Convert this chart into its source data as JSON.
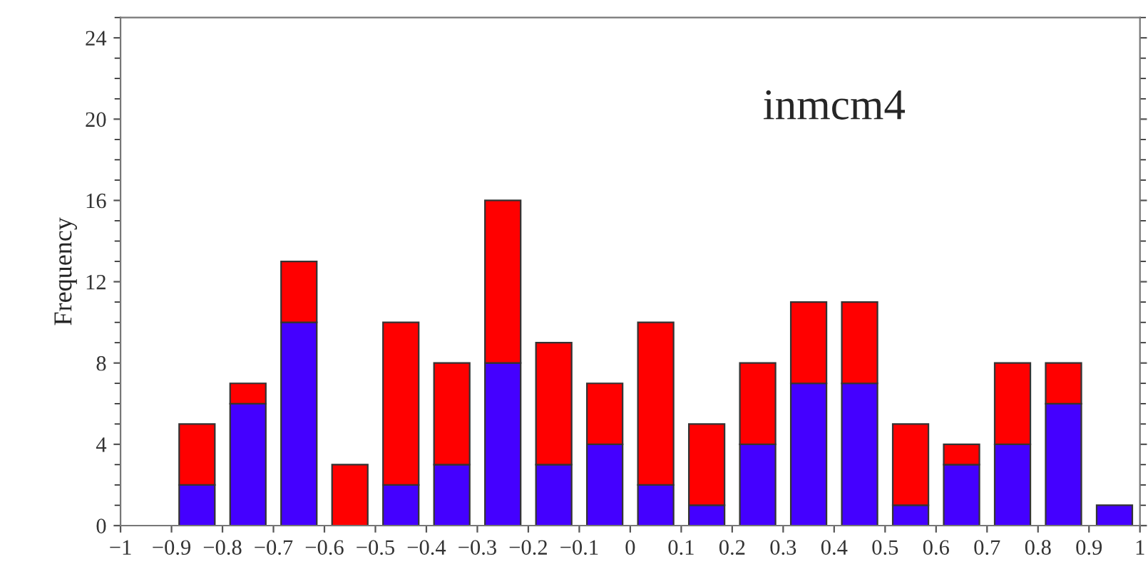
{
  "chart_data": {
    "type": "bar",
    "stacked": true,
    "ylabel": "Frequency",
    "annotations": [
      "inmcm4"
    ],
    "x": [
      -0.85,
      -0.75,
      -0.65,
      -0.55,
      -0.45,
      -0.35,
      -0.25,
      -0.15,
      -0.05,
      0.05,
      0.15,
      0.25,
      0.35,
      0.45,
      0.55,
      0.65,
      0.75,
      0.85,
      0.95
    ],
    "series": [
      {
        "color": "#4400ff",
        "values": [
          2,
          6,
          10,
          0,
          2,
          3,
          8,
          3,
          4,
          2,
          1,
          4,
          7,
          7,
          1,
          3,
          4,
          6,
          1
        ]
      },
      {
        "color": "#ff0000",
        "values": [
          3,
          1,
          3,
          3,
          8,
          5,
          8,
          6,
          3,
          8,
          4,
          4,
          4,
          4,
          4,
          1,
          4,
          2,
          0
        ]
      }
    ],
    "xlim": [
      -1,
      1
    ],
    "xticks": [
      {
        "value": -1,
        "label": "−1"
      },
      {
        "value": -0.9,
        "label": "−0.9"
      },
      {
        "value": -0.8,
        "label": "−0.8"
      },
      {
        "value": -0.7,
        "label": "−0.7"
      },
      {
        "value": -0.6,
        "label": "−0.6"
      },
      {
        "value": -0.5,
        "label": "−0.5"
      },
      {
        "value": -0.4,
        "label": "−0.4"
      },
      {
        "value": -0.3,
        "label": "−0.3"
      },
      {
        "value": -0.2,
        "label": "−0.2"
      },
      {
        "value": -0.1,
        "label": "−0.1"
      },
      0,
      0.1,
      0.2,
      0.3,
      0.4,
      0.5,
      0.6,
      0.7,
      0.8,
      0.9,
      1
    ],
    "ylim": [
      0,
      25
    ],
    "yticks": [
      0,
      4,
      8,
      12,
      16,
      20,
      24
    ],
    "grid": false
  }
}
